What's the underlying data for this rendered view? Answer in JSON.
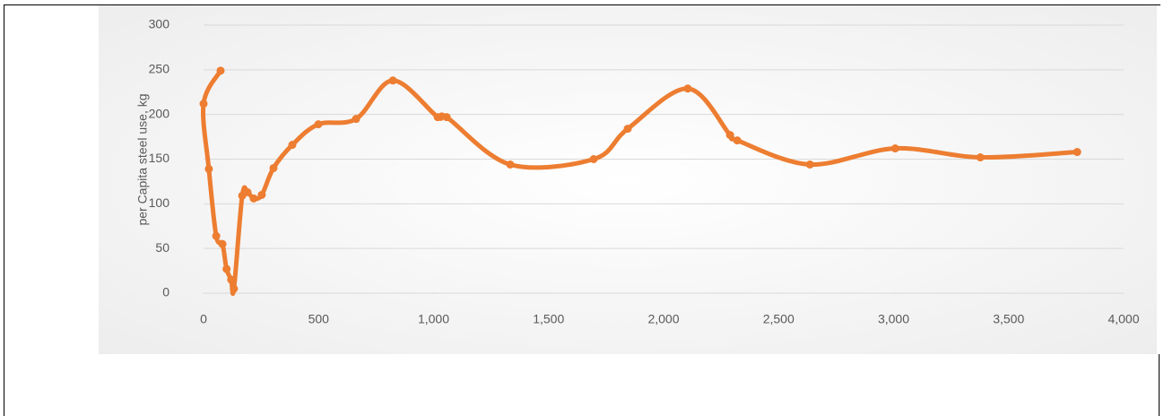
{
  "chart_data": {
    "type": "line",
    "y_label": "per Capita steel use, kg",
    "series": [
      {
        "name": "per Capita steel use",
        "color": "#ed7d31",
        "x": [
          74,
          0,
          23,
          55,
          82,
          100,
          120,
          132,
          168,
          191,
          218,
          253,
          304,
          386,
          499,
          663,
          823,
          1018,
          1057,
          1333,
          1696,
          1844,
          2105,
          2289,
          2320,
          2636,
          3007,
          3377,
          3798
        ],
        "values": [
          249,
          212,
          139,
          64,
          55,
          27,
          15,
          5,
          109,
          113,
          106,
          110,
          140,
          166,
          189,
          195,
          238,
          197,
          197,
          144,
          150,
          184,
          229,
          177,
          171,
          144,
          162,
          152,
          158
        ]
      }
    ],
    "xlim": [
      0,
      4000
    ],
    "xticks": [
      0,
      500,
      {
        "value": 1000,
        "label": "1,000"
      },
      {
        "value": 1500,
        "label": "1,500"
      },
      {
        "value": 2000,
        "label": "2,000"
      },
      {
        "value": 2500,
        "label": "2,500"
      },
      {
        "value": 3000,
        "label": "3,000"
      },
      {
        "value": 3500,
        "label": "3,500"
      },
      {
        "value": 4000,
        "label": "4,000"
      }
    ],
    "ylim": [
      0,
      300
    ],
    "yticks": [
      0,
      50,
      100,
      150,
      200,
      250,
      300
    ],
    "grid": true
  }
}
